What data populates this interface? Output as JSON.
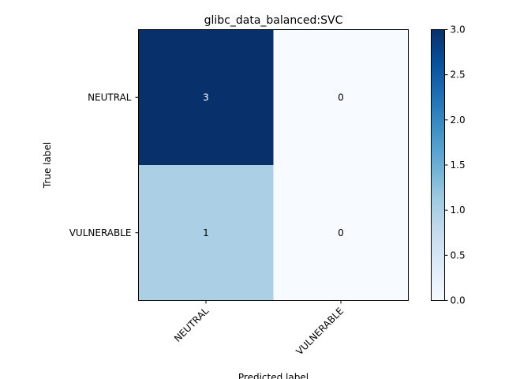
{
  "chart_data": {
    "type": "heatmap",
    "title": "glibc_data_balanced:SVC",
    "xlabel": "Predicted label",
    "ylabel": "True label",
    "x_categories": [
      "NEUTRAL",
      "VULNERABLE"
    ],
    "y_categories": [
      "NEUTRAL",
      "VULNERABLE"
    ],
    "values": [
      [
        3,
        0
      ],
      [
        1,
        0
      ]
    ],
    "colormap": "Blues",
    "colors": {
      "min": "#f7fbff",
      "max": "#08306b",
      "mid_value_1": "#abd0e6",
      "text_light": "#ffffff",
      "text_dark": "#000000"
    },
    "colorbar": {
      "range": [
        0.0,
        3.0
      ],
      "ticks": [
        "0.0",
        "0.5",
        "1.0",
        "1.5",
        "2.0",
        "2.5",
        "3.0"
      ]
    }
  }
}
